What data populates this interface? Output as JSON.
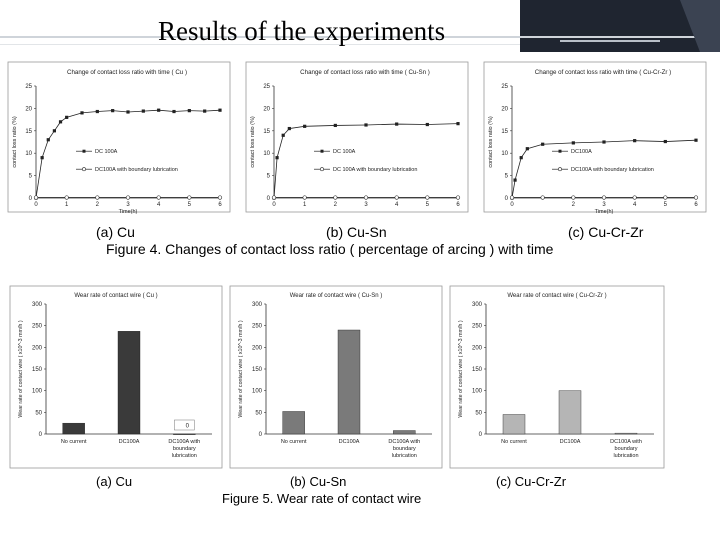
{
  "slide_title": "Results of the experiments",
  "figure4": {
    "caption": "Figure 4. Changes of contact loss ratio ( percentage of arcing ) with time",
    "panels": [
      {
        "label": "(a) Cu",
        "chart_title": "Change of contact loss ratio with time ( Cu )",
        "ylabel": "contact loss ratio (%)",
        "xlabel": "Time(h)",
        "legend": [
          "DC 100A",
          "DC100A with boundary lubrication"
        ]
      },
      {
        "label": "(b) Cu-Sn",
        "chart_title": "Change of contact loss ratio with time ( Cu-Sn )",
        "ylabel": "contact loss ratio (%)",
        "xlabel": "",
        "legend": [
          "DC 100A",
          "DC 100A with boundary lubrication"
        ]
      },
      {
        "label": "(c) Cu-Cr-Zr",
        "chart_title": "Change of contact loss ratio with time ( Cu-Cr-Zr )",
        "ylabel": "contact loss ratio (%)",
        "xlabel": "Time(h)",
        "legend": [
          "DC100A",
          "DC100A with boundary lubrication"
        ]
      }
    ]
  },
  "figure5": {
    "caption": "Figure 5. Wear rate of contact wire",
    "panels": [
      {
        "label": "(a) Cu",
        "chart_title": "Wear rate of contact wire ( Cu )",
        "ylabel": "Wear rate of contact wire ( x10^-3 mm/h )",
        "bar_color": "#3a3a3a",
        "value_label": "0"
      },
      {
        "label": "(b) Cu-Sn",
        "chart_title": "Wear rate of contact wire ( Cu-Sn )",
        "ylabel": "Wear rate of contact wire ( x10^-3 mm/h )",
        "bar_color": "#7a7a7a",
        "value_label": ""
      },
      {
        "label": "(c) Cu-Cr-Zr",
        "chart_title": "Wear rate of contact wire ( Cu-Cr-Zr )",
        "ylabel": "Wear rate of contact wire ( x10^-3 mm/h )",
        "bar_color": "#b5b5b5",
        "value_label": ""
      }
    ]
  },
  "chart_data": [
    {
      "type": "line",
      "title": "Change of contact loss ratio with time ( Cu )",
      "xlabel": "Time(h)",
      "ylabel": "contact loss ratio (%)",
      "xlim": [
        0,
        6
      ],
      "ylim": [
        0,
        25
      ],
      "xticks": [
        0,
        1,
        2,
        3,
        4,
        5,
        6
      ],
      "yticks": [
        0,
        5,
        10,
        15,
        20,
        25
      ],
      "series": [
        {
          "name": "DC 100A",
          "x": [
            0,
            0.2,
            0.4,
            0.6,
            0.8,
            1.0,
            1.5,
            2,
            2.5,
            3,
            3.5,
            4,
            4.5,
            5,
            5.5,
            6
          ],
          "y": [
            0,
            9,
            13,
            15,
            17,
            18,
            19,
            19.3,
            19.5,
            19.2,
            19.4,
            19.6,
            19.3,
            19.5,
            19.4,
            19.6
          ]
        },
        {
          "name": "DC100A with boundary lubrication",
          "x": [
            0,
            1,
            2,
            3,
            4,
            5,
            6
          ],
          "y": [
            0.1,
            0.1,
            0.1,
            0.1,
            0.1,
            0.1,
            0.1
          ]
        }
      ]
    },
    {
      "type": "line",
      "title": "Change of contact loss ratio with time ( Cu-Sn )",
      "ylabel": "contact loss ratio (%)",
      "xlim": [
        0,
        6
      ],
      "ylim": [
        0,
        25
      ],
      "xticks": [
        0,
        1,
        2,
        3,
        4,
        5,
        6
      ],
      "yticks": [
        0,
        5,
        10,
        15,
        20,
        25
      ],
      "series": [
        {
          "name": "DC 100A",
          "x": [
            0,
            0.1,
            0.3,
            0.5,
            1,
            2,
            3,
            4,
            5,
            6
          ],
          "y": [
            0,
            9,
            14,
            15.5,
            16,
            16.2,
            16.3,
            16.5,
            16.4,
            16.6
          ]
        },
        {
          "name": "DC 100A with boundary lubrication",
          "x": [
            0,
            1,
            2,
            3,
            4,
            5,
            6
          ],
          "y": [
            0.1,
            0.1,
            0.1,
            0.1,
            0.1,
            0.1,
            0.1
          ]
        }
      ]
    },
    {
      "type": "line",
      "title": "Change of contact loss ratio with time ( Cu-Cr-Zr )",
      "xlabel": "Time(h)",
      "ylabel": "contact loss ratio (%)",
      "xlim": [
        0,
        6
      ],
      "ylim": [
        0,
        25
      ],
      "xticks": [
        0,
        2,
        3,
        4,
        5,
        6
      ],
      "yticks": [
        0,
        5,
        10,
        15,
        20,
        25
      ],
      "series": [
        {
          "name": "DC100A",
          "x": [
            0,
            0.1,
            0.3,
            0.5,
            1,
            2,
            3,
            4,
            5,
            6
          ],
          "y": [
            0,
            4,
            9,
            11,
            12,
            12.3,
            12.5,
            12.8,
            12.6,
            12.9
          ]
        },
        {
          "name": "DC100A with boundary lubrication",
          "x": [
            0,
            1,
            2,
            3,
            4,
            5,
            6
          ],
          "y": [
            0.1,
            0.1,
            0.1,
            0.1,
            0.1,
            0.1,
            0.1
          ]
        }
      ]
    },
    {
      "type": "bar",
      "title": "Wear rate of contact wire ( Cu )",
      "ylabel": "Wear rate of contact wire ( x10^-3 mm/h )",
      "categories": [
        "No current",
        "DC100A",
        "DC100A with boundary lubrication"
      ],
      "values": [
        25,
        237,
        0
      ],
      "ylim": [
        0,
        300
      ],
      "yticks": [
        0,
        50,
        100,
        150,
        200,
        250,
        300
      ]
    },
    {
      "type": "bar",
      "title": "Wear rate of contact wire ( Cu-Sn )",
      "ylabel": "Wear rate of contact wire ( x10^-3 mm/h )",
      "categories": [
        "No current",
        "DC100A",
        "DC100A with boundary lubrication"
      ],
      "values": [
        52,
        240,
        8
      ],
      "ylim": [
        0,
        300
      ],
      "yticks": [
        0,
        50,
        100,
        150,
        200,
        250,
        300
      ]
    },
    {
      "type": "bar",
      "title": "Wear rate of contact wire ( Cu-Cr-Zr )",
      "ylabel": "Wear rate of contact wire ( x10^-3 mm/h )",
      "categories": [
        "No current",
        "DC100A",
        "DC100A with boundary lubrication"
      ],
      "values": [
        45,
        100,
        2
      ],
      "ylim": [
        0,
        300
      ],
      "yticks": [
        0,
        50,
        100,
        150,
        200,
        250,
        300
      ]
    }
  ]
}
